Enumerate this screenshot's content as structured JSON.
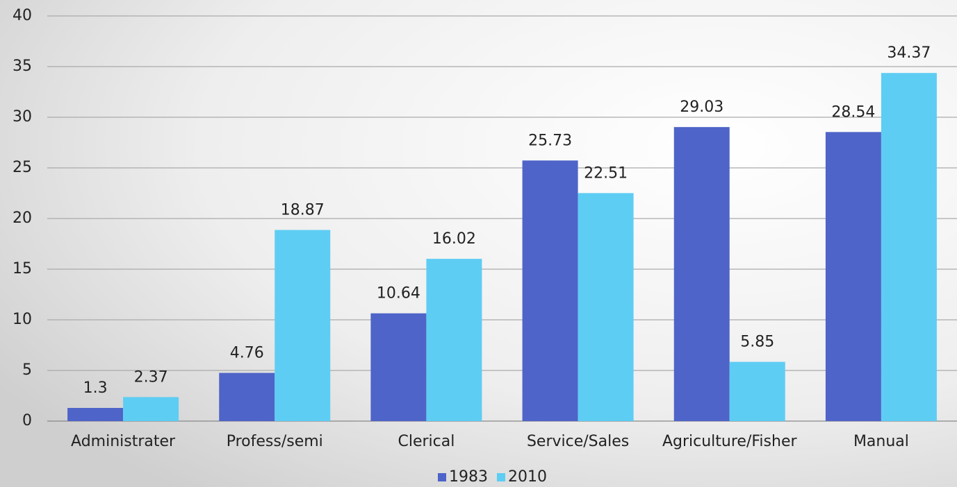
{
  "chart_data": {
    "type": "bar",
    "categories": [
      "Administrater",
      "Profess/semi",
      "Clerical",
      "Service/Sales",
      "Agriculture/Fisher",
      "Manual"
    ],
    "series": [
      {
        "name": "1983",
        "color": "#4e64c8",
        "values": [
          1.3,
          4.76,
          10.64,
          25.73,
          29.03,
          28.54
        ]
      },
      {
        "name": "2010",
        "color": "#5ecdf3",
        "values": [
          2.37,
          18.87,
          16.02,
          22.51,
          5.85,
          34.37
        ]
      }
    ],
    "ylim": [
      0,
      40
    ],
    "yticks": [
      0,
      5,
      10,
      15,
      20,
      25,
      30,
      35,
      40
    ],
    "grid": true,
    "legend": "bottom"
  }
}
